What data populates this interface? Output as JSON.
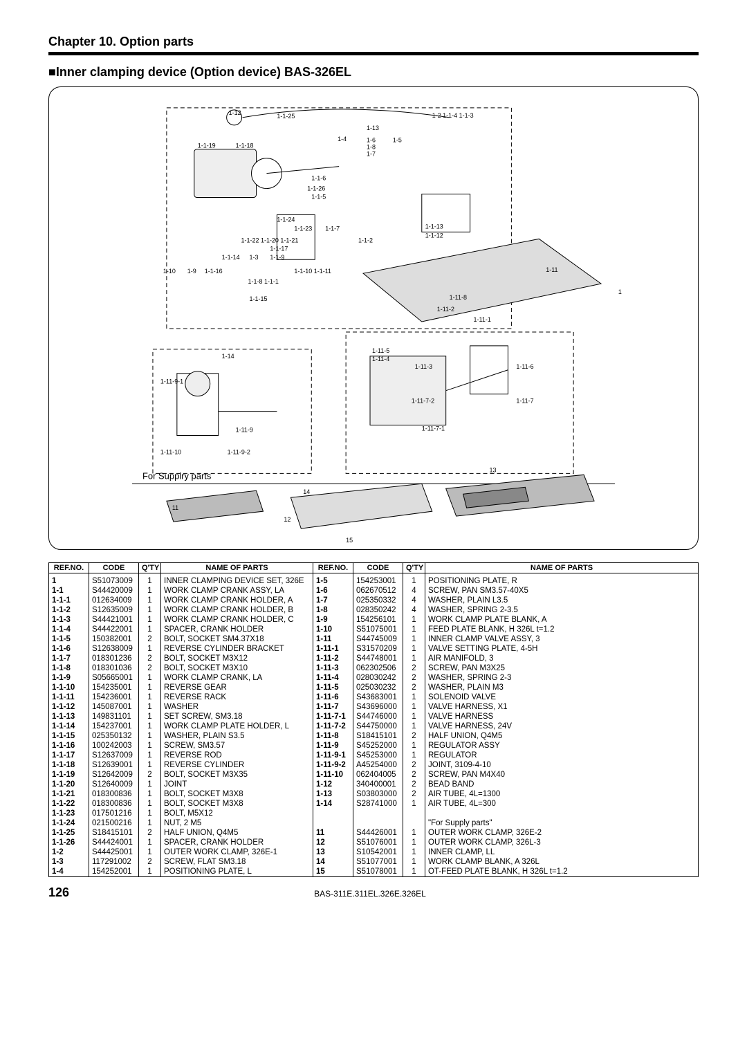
{
  "chapter": "Chapter 10. Option parts",
  "section_title": "■Inner clamping device (Option device) BAS-326EL",
  "diagram_note": "For Supplry parts",
  "page_number": "126",
  "footer_model": "BAS-311E.311EL.326E.326EL",
  "columns": [
    "REF.NO.",
    "CODE",
    "Q'TY",
    "NAME OF PARTS",
    "REF.NO.",
    "CODE",
    "Q'TY",
    "NAME OF PARTS"
  ],
  "rows": [
    [
      "1",
      "S51073009",
      "1",
      "INNER CLAMPING DEVICE SET, 326E",
      "1-5",
      "154253001",
      "1",
      "POSITIONING PLATE, R"
    ],
    [
      "1-1",
      "S44420009",
      "1",
      "WORK CLAMP CRANK ASSY, LA",
      "1-6",
      "062670512",
      "4",
      "SCREW, PAN SM3.57-40X5"
    ],
    [
      "1-1-1",
      "012634009",
      "1",
      "WORK CLAMP CRANK HOLDER, A",
      "1-7",
      "025350332",
      "4",
      "WASHER, PLAIN L3.5"
    ],
    [
      "1-1-2",
      "S12635009",
      "1",
      "WORK CLAMP CRANK HOLDER, B",
      "1-8",
      "028350242",
      "4",
      "WASHER, SPRING 2-3.5"
    ],
    [
      "1-1-3",
      "S44421001",
      "1",
      "WORK CLAMP CRANK HOLDER, C",
      "1-9",
      "154256101",
      "1",
      "WORK CLAMP PLATE BLANK, A"
    ],
    [
      "1-1-4",
      "S44422001",
      "1",
      "SPACER, CRANK HOLDER",
      "1-10",
      "S51075001",
      "1",
      "FEED PLATE BLANK, H 326L t=1.2"
    ],
    [
      "1-1-5",
      "150382001",
      "2",
      "BOLT, SOCKET SM4.37X18",
      "1-11",
      "S44745009",
      "1",
      "INNER CLAMP VALVE ASSY, 3"
    ],
    [
      "1-1-6",
      "S12638009",
      "1",
      "REVERSE CYLINDER BRACKET",
      "1-11-1",
      "S31570209",
      "1",
      "VALVE SETTING PLATE, 4-5H"
    ],
    [
      "1-1-7",
      "018301236",
      "2",
      "BOLT, SOCKET M3X12",
      "1-11-2",
      "S44748001",
      "1",
      "AIR MANIFOLD, 3"
    ],
    [
      "1-1-8",
      "018301036",
      "2",
      "BOLT, SOCKET M3X10",
      "1-11-3",
      "062302506",
      "2",
      "SCREW, PAN M3X25"
    ],
    [
      "1-1-9",
      "S05665001",
      "1",
      "WORK CLAMP CRANK, LA",
      "1-11-4",
      "028030242",
      "2",
      "WASHER, SPRING 2-3"
    ],
    [
      "1-1-10",
      "154235001",
      "1",
      "REVERSE GEAR",
      "1-11-5",
      "025030232",
      "2",
      "WASHER, PLAIN M3"
    ],
    [
      "1-1-11",
      "154236001",
      "1",
      "REVERSE RACK",
      "1-11-6",
      "S43683001",
      "1",
      "SOLENOID VALVE"
    ],
    [
      "1-1-12",
      "145087001",
      "1",
      "WASHER",
      "1-11-7",
      "S43696000",
      "1",
      "VALVE HARNESS, X1"
    ],
    [
      "1-1-13",
      "149831101",
      "1",
      "SET SCREW, SM3.18",
      "1-11-7-1",
      "S44746000",
      "1",
      "VALVE HARNESS"
    ],
    [
      "1-1-14",
      "154237001",
      "1",
      "WORK CLAMP PLATE HOLDER, L",
      "1-11-7-2",
      "S44750000",
      "1",
      "VALVE HARNESS, 24V"
    ],
    [
      "1-1-15",
      "025350132",
      "1",
      "WASHER, PLAIN S3.5",
      "1-11-8",
      "S18415101",
      "2",
      "HALF UNION, Q4M5"
    ],
    [
      "1-1-16",
      "100242003",
      "1",
      "SCREW, SM3.57",
      "1-11-9",
      "S45252000",
      "1",
      "REGULATOR ASSY"
    ],
    [
      "1-1-17",
      "S12637009",
      "1",
      "REVERSE ROD",
      "1-11-9-1",
      "S45253000",
      "1",
      "REGULATOR"
    ],
    [
      "1-1-18",
      "S12639001",
      "1",
      "REVERSE CYLINDER",
      "1-11-9-2",
      "A45254000",
      "2",
      "JOINT, 3109-4-10"
    ],
    [
      "1-1-19",
      "S12642009",
      "2",
      "BOLT, SOCKET M3X35",
      "1-11-10",
      "062404005",
      "2",
      "SCREW, PAN M4X40"
    ],
    [
      "1-1-20",
      "S12640009",
      "1",
      "JOINT",
      "1-12",
      "340400001",
      "2",
      "BEAD BAND"
    ],
    [
      "1-1-21",
      "018300836",
      "1",
      "BOLT, SOCKET M3X8",
      "1-13",
      "S03803000",
      "2",
      "AIR TUBE, 4L=1300"
    ],
    [
      "1-1-22",
      "018300836",
      "1",
      "BOLT, SOCKET M3X8",
      "1-14",
      "S28741000",
      "1",
      "AIR TUBE, 4L=300"
    ],
    [
      "1-1-23",
      "017501216",
      "1",
      "BOLT, M5X12",
      "",
      "",
      "",
      ""
    ],
    [
      "1-1-24",
      "021500216",
      "1",
      "NUT, 2 M5",
      "",
      "",
      "",
      "\"For Supply parts\""
    ],
    [
      "1-1-25",
      "S18415101",
      "2",
      "HALF UNION, Q4M5",
      "11",
      "S44426001",
      "1",
      "OUTER WORK CLAMP, 326E-2"
    ],
    [
      "1-1-26",
      "S44424001",
      "1",
      "SPACER, CRANK HOLDER",
      "12",
      "S51076001",
      "1",
      "OUTER WORK CLAMP, 326L-3"
    ],
    [
      "1-2",
      "S44425001",
      "1",
      "OUTER WORK CLAMP, 326E-1",
      "13",
      "S10542001",
      "1",
      "INNER CLAMP, LL"
    ],
    [
      "1-3",
      "117291002",
      "2",
      "SCREW, FLAT SM3.18",
      "14",
      "S51077001",
      "1",
      "WORK CLAMP BLANK, A 326L"
    ],
    [
      "1-4",
      "154252001",
      "1",
      "POSITIONING PLATE, L",
      "15",
      "S51078001",
      "1",
      "OT-FEED PLATE BLANK, H 326L t=1.2"
    ]
  ]
}
